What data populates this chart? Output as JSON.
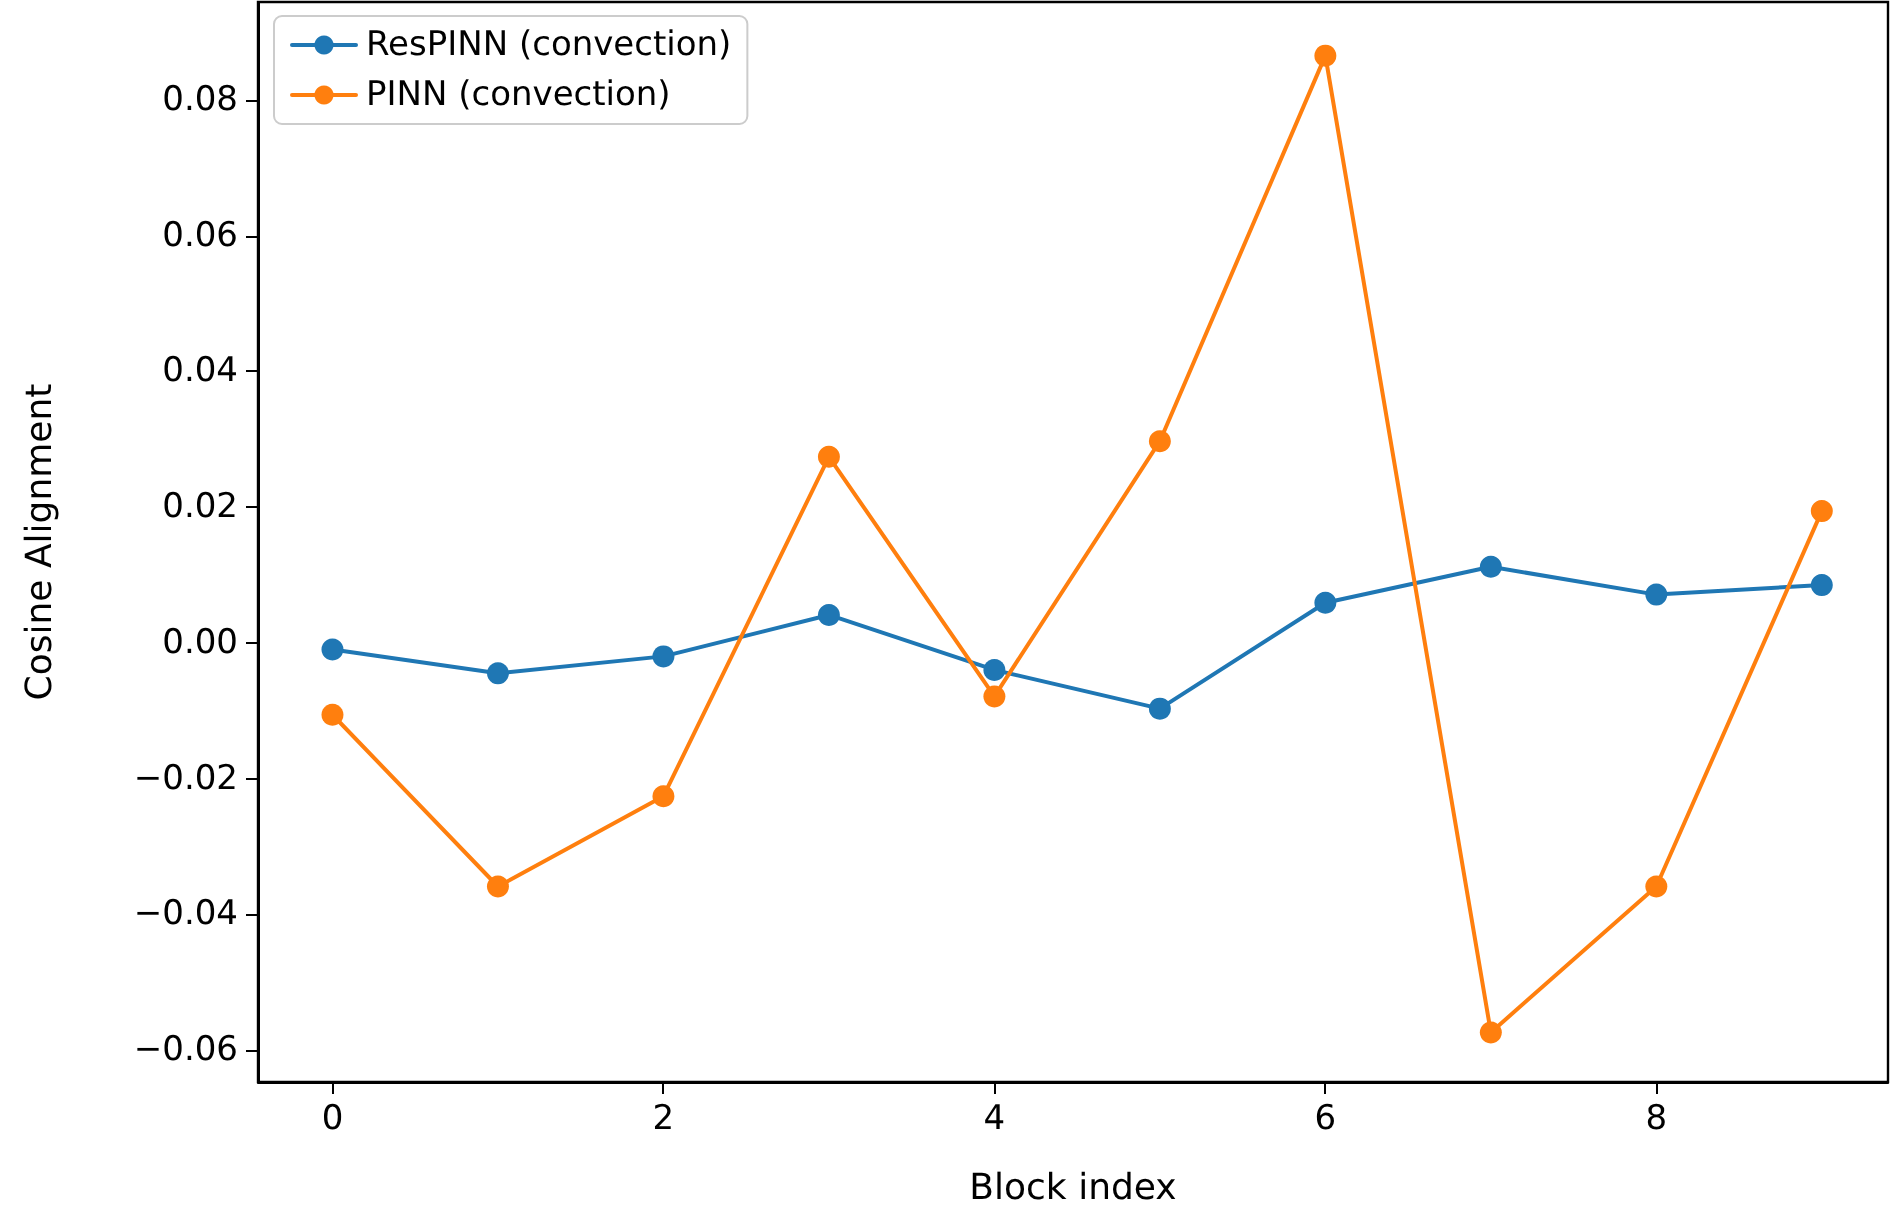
{
  "chart_data": {
    "type": "line",
    "xlabel": "Block index",
    "ylabel": "Cosine Alignment",
    "x": [
      0,
      1,
      2,
      3,
      4,
      5,
      6,
      7,
      8,
      9
    ],
    "series": [
      {
        "name": "ResPINN (convection)",
        "color": "#1f77b4",
        "values": [
          -0.001,
          -0.0045,
          -0.002,
          0.0041,
          -0.004,
          -0.0097,
          0.0059,
          0.0112,
          0.0071,
          0.0085
        ]
      },
      {
        "name": "PINN (convection)",
        "color": "#ff7f0e",
        "values": [
          -0.0106,
          -0.0359,
          -0.0226,
          0.0274,
          -0.0079,
          0.0297,
          0.0865,
          -0.0574,
          -0.0359,
          0.0194
        ]
      }
    ],
    "xlim": [
      -0.45,
      9.4
    ],
    "xticks": [
      0,
      2,
      4,
      6,
      8
    ],
    "ylim": [
      -0.0647,
      0.0944
    ],
    "yticks": [
      {
        "value": -0.06,
        "label": "−0.06"
      },
      {
        "value": -0.04,
        "label": "−0.04"
      },
      {
        "value": -0.02,
        "label": "−0.02"
      },
      {
        "value": 0,
        "label": "0.00"
      },
      {
        "value": 0.02,
        "label": "0.02"
      },
      {
        "value": 0.04,
        "label": "0.04"
      },
      {
        "value": 0.06,
        "label": "0.06"
      },
      {
        "value": 0.08,
        "label": "0.08"
      }
    ],
    "grid": false,
    "legend": "top left",
    "marker": "circle",
    "line_style": "solid"
  }
}
